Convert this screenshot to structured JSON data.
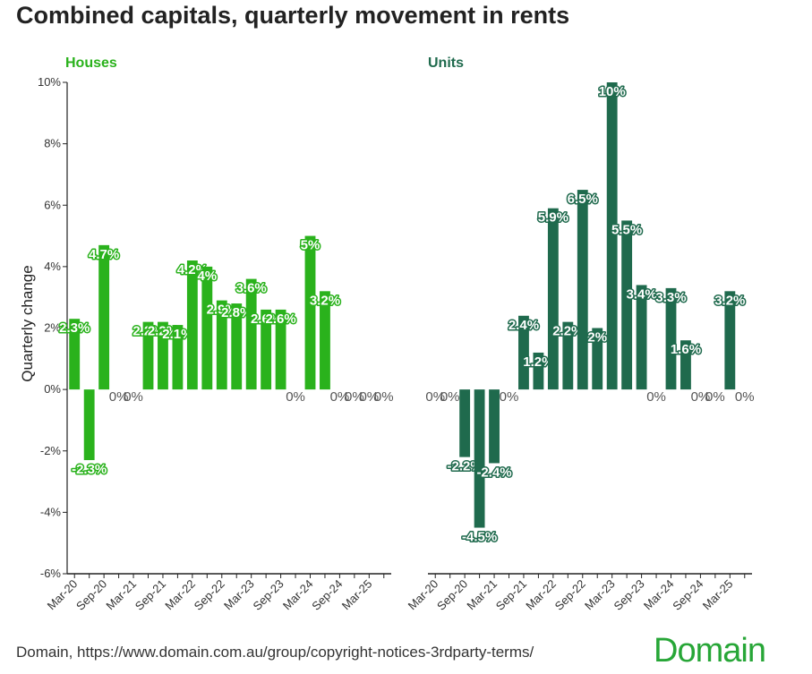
{
  "title": "Combined capitals, quarterly movement in rents",
  "source": "Domain, https://www.domain.com.au/group/copyright-notices-3rdparty-terms/",
  "logo_text": "Domain",
  "colors": {
    "houses": "#2ab21c",
    "units": "#1f6a4d"
  },
  "chart_data": {
    "type": "bar",
    "ylabel": "Quarterly change",
    "ylim": [
      -6,
      10
    ],
    "yticks": [
      "10%",
      "8%",
      "6%",
      "4%",
      "2%",
      "0%",
      "-2%",
      "-4%",
      "-6%"
    ],
    "categories": [
      "Mar-20",
      "Jun-20",
      "Sep-20",
      "Dec-20",
      "Mar-21",
      "Jun-21",
      "Sep-21",
      "Dec-21",
      "Mar-22",
      "Jun-22",
      "Sep-22",
      "Dec-22",
      "Mar-23",
      "Jun-23",
      "Sep-23",
      "Dec-23",
      "Mar-24",
      "Jun-24",
      "Sep-24",
      "Dec-24",
      "Mar-25",
      "Jun-25"
    ],
    "xtick_labels": [
      "Mar-20",
      "",
      "Sep-20",
      "",
      "Mar-21",
      "",
      "Sep-21",
      "",
      "Mar-22",
      "",
      "Sep-22",
      "",
      "Mar-23",
      "",
      "Sep-23",
      "",
      "Mar-24",
      "",
      "Sep-24",
      "",
      "Mar-25",
      ""
    ],
    "panels": [
      {
        "name": "Houses",
        "values": [
          2.3,
          -2.3,
          4.7,
          0,
          0,
          2.2,
          2.2,
          2.1,
          4.2,
          4,
          2.9,
          2.8,
          3.6,
          2.6,
          2.6,
          0,
          5,
          3.2,
          0,
          0,
          0,
          0
        ],
        "labels": [
          "2.3%",
          "-2.3%",
          "4.7%",
          "0%",
          "0%",
          "2.2%",
          "2.2%",
          "2.1%",
          "4.2%",
          "4%",
          "2.9%",
          "2.8%",
          "3.6%",
          "2.6%",
          "2.6%",
          "0%",
          "5%",
          "3.2%",
          "0%",
          "0%",
          "0%",
          "0%"
        ]
      },
      {
        "name": "Units",
        "values": [
          0,
          0,
          -2.2,
          -4.5,
          -2.4,
          0,
          2.4,
          1.2,
          5.9,
          2.2,
          6.5,
          2,
          10,
          5.5,
          3.4,
          0,
          3.3,
          1.6,
          0,
          0,
          3.2,
          0
        ],
        "labels": [
          "0%",
          "0%",
          "-2.2%",
          "-4.5%",
          "-2.4%",
          "0%",
          "2.4%",
          "1.2%",
          "5.9%",
          "2.2%",
          "6.5%",
          "2%",
          "10%",
          "5.5%",
          "3.4%",
          "0%",
          "3.3%",
          "1.6%",
          "0%",
          "0%",
          "3.2%",
          "0%"
        ]
      }
    ]
  }
}
